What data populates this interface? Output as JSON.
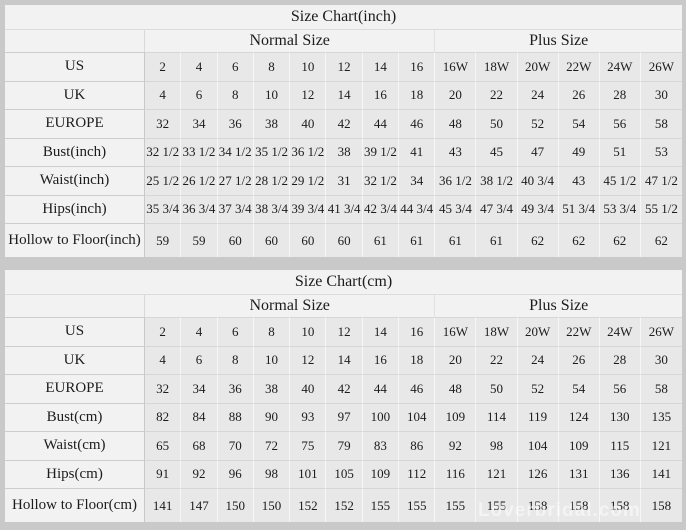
{
  "colors": {
    "page_bg": "#c9c9c9",
    "panel_bg": "#f2f2f2",
    "cell_bg": "#e8e8e8",
    "text": "#1c1c1c"
  },
  "watermark": {
    "text": "Loverbridal.com"
  },
  "chart_data": [
    {
      "type": "table",
      "title": "Size Chart(inch)",
      "column_groups": [
        {
          "label": "Normal Size",
          "columns": 8
        },
        {
          "label": "Plus Size",
          "columns": 6
        }
      ],
      "columns": [
        "2",
        "4",
        "6",
        "8",
        "10",
        "12",
        "14",
        "16",
        "16W",
        "18W",
        "20W",
        "22W",
        "24W",
        "26W"
      ],
      "rows": [
        {
          "label": "US",
          "values": [
            "2",
            "4",
            "6",
            "8",
            "10",
            "12",
            "14",
            "16",
            "16W",
            "18W",
            "20W",
            "22W",
            "24W",
            "26W"
          ]
        },
        {
          "label": "UK",
          "values": [
            "4",
            "6",
            "8",
            "10",
            "12",
            "14",
            "16",
            "18",
            "20",
            "22",
            "24",
            "26",
            "28",
            "30"
          ]
        },
        {
          "label": "EUROPE",
          "values": [
            "32",
            "34",
            "36",
            "38",
            "40",
            "42",
            "44",
            "46",
            "48",
            "50",
            "52",
            "54",
            "56",
            "58"
          ]
        },
        {
          "label": "Bust(inch)",
          "values": [
            "32 1/2",
            "33 1/2",
            "34 1/2",
            "35 1/2",
            "36 1/2",
            "38",
            "39 1/2",
            "41",
            "43",
            "45",
            "47",
            "49",
            "51",
            "53"
          ]
        },
        {
          "label": "Waist(inch)",
          "values": [
            "25 1/2",
            "26 1/2",
            "27 1/2",
            "28 1/2",
            "29 1/2",
            "31",
            "32 1/2",
            "34",
            "36 1/2",
            "38 1/2",
            "40 3/4",
            "43",
            "45 1/2",
            "47 1/2"
          ]
        },
        {
          "label": "Hips(inch)",
          "values": [
            "35 3/4",
            "36 3/4",
            "37 3/4",
            "38 3/4",
            "39 3/4",
            "41 3/4",
            "42 3/4",
            "44 3/4",
            "45 3/4",
            "47 3/4",
            "49 3/4",
            "51 3/4",
            "53 3/4",
            "55 1/2"
          ]
        },
        {
          "label": "Hollow to Floor(inch)",
          "values": [
            "59",
            "59",
            "60",
            "60",
            "60",
            "60",
            "61",
            "61",
            "61",
            "61",
            "62",
            "62",
            "62",
            "62"
          ]
        }
      ]
    },
    {
      "type": "table",
      "title": "Size Chart(cm)",
      "column_groups": [
        {
          "label": "Normal Size",
          "columns": 8
        },
        {
          "label": "Plus Size",
          "columns": 6
        }
      ],
      "columns": [
        "2",
        "4",
        "6",
        "8",
        "10",
        "12",
        "14",
        "16",
        "16W",
        "18W",
        "20W",
        "22W",
        "24W",
        "26W"
      ],
      "rows": [
        {
          "label": "US",
          "values": [
            "2",
            "4",
            "6",
            "8",
            "10",
            "12",
            "14",
            "16",
            "16W",
            "18W",
            "20W",
            "22W",
            "24W",
            "26W"
          ]
        },
        {
          "label": "UK",
          "values": [
            "4",
            "6",
            "8",
            "10",
            "12",
            "14",
            "16",
            "18",
            "20",
            "22",
            "24",
            "26",
            "28",
            "30"
          ]
        },
        {
          "label": "EUROPE",
          "values": [
            "32",
            "34",
            "36",
            "38",
            "40",
            "42",
            "44",
            "46",
            "48",
            "50",
            "52",
            "54",
            "56",
            "58"
          ]
        },
        {
          "label": "Bust(cm)",
          "values": [
            "82",
            "84",
            "88",
            "90",
            "93",
            "97",
            "100",
            "104",
            "109",
            "114",
            "119",
            "124",
            "130",
            "135"
          ]
        },
        {
          "label": "Waist(cm)",
          "values": [
            "65",
            "68",
            "70",
            "72",
            "75",
            "79",
            "83",
            "86",
            "92",
            "98",
            "104",
            "109",
            "115",
            "121"
          ]
        },
        {
          "label": "Hips(cm)",
          "values": [
            "91",
            "92",
            "96",
            "98",
            "101",
            "105",
            "109",
            "112",
            "116",
            "121",
            "126",
            "131",
            "136",
            "141"
          ]
        },
        {
          "label": "Hollow to Floor(cm)",
          "values": [
            "141",
            "147",
            "150",
            "150",
            "152",
            "152",
            "155",
            "155",
            "155",
            "155",
            "158",
            "158",
            "158",
            "158"
          ]
        }
      ]
    }
  ]
}
